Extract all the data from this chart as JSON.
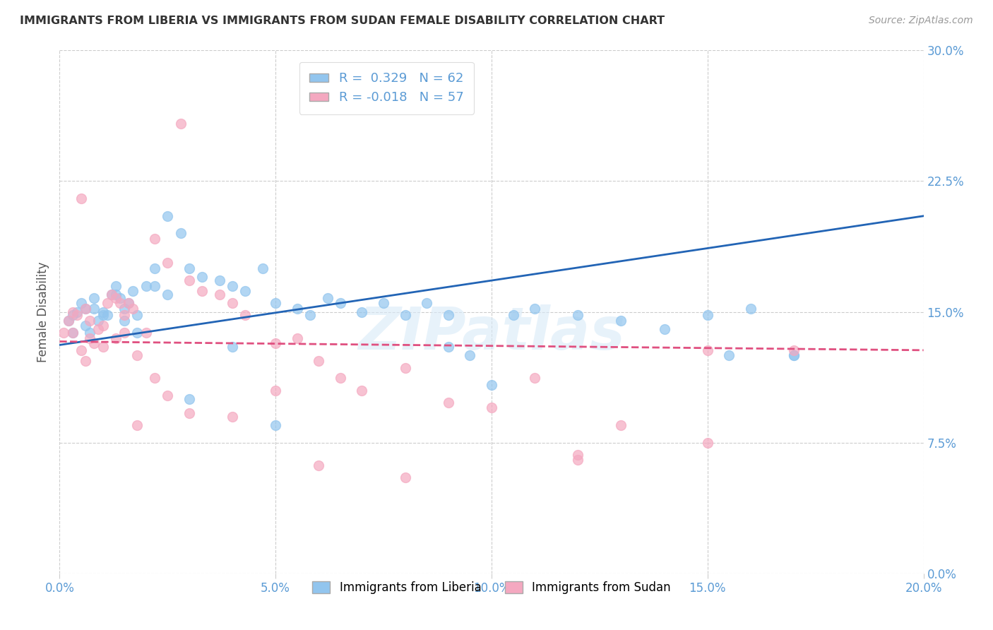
{
  "title": "IMMIGRANTS FROM LIBERIA VS IMMIGRANTS FROM SUDAN FEMALE DISABILITY CORRELATION CHART",
  "source": "Source: ZipAtlas.com",
  "xlabel_ticks": [
    "0.0%",
    "",
    "",
    "",
    "20.0%"
  ],
  "xlabel_tick_vals": [
    0.0,
    0.05,
    0.1,
    0.15,
    0.2
  ],
  "ylabel": "Female Disability",
  "ylabel_ticks": [
    "30.0%",
    "22.5%",
    "15.0%",
    "7.5%",
    "0.0%"
  ],
  "ylabel_tick_vals": [
    0.3,
    0.225,
    0.15,
    0.075,
    0.0
  ],
  "xlim": [
    0.0,
    0.2
  ],
  "ylim": [
    0.0,
    0.3
  ],
  "liberia_R": 0.329,
  "liberia_N": 62,
  "sudan_R": -0.018,
  "sudan_N": 57,
  "legend_label_liberia": "Immigrants from Liberia",
  "legend_label_sudan": "Immigrants from Sudan",
  "color_liberia": "#92C5EE",
  "color_sudan": "#F4A8C0",
  "trendline_liberia_color": "#2264B5",
  "trendline_sudan_color": "#E05080",
  "axis_label_color": "#5B9BD5",
  "title_color": "#333333",
  "watermark_text": "ZIPatlas",
  "trendline_liberia_x0": 0.0,
  "trendline_liberia_y0": 0.131,
  "trendline_liberia_x1": 0.2,
  "trendline_liberia_y1": 0.205,
  "trendline_sudan_x0": 0.0,
  "trendline_sudan_y0": 0.133,
  "trendline_sudan_x1": 0.2,
  "trendline_sudan_y1": 0.128,
  "liberia_x": [
    0.002,
    0.003,
    0.004,
    0.005,
    0.006,
    0.007,
    0.008,
    0.009,
    0.01,
    0.011,
    0.012,
    0.013,
    0.014,
    0.015,
    0.016,
    0.017,
    0.018,
    0.02,
    0.022,
    0.025,
    0.028,
    0.03,
    0.033,
    0.037,
    0.04,
    0.043,
    0.047,
    0.05,
    0.055,
    0.058,
    0.062,
    0.065,
    0.07,
    0.075,
    0.08,
    0.085,
    0.09,
    0.095,
    0.1,
    0.105,
    0.11,
    0.12,
    0.13,
    0.14,
    0.15,
    0.155,
    0.16,
    0.17,
    0.003,
    0.006,
    0.008,
    0.01,
    0.013,
    0.015,
    0.018,
    0.022,
    0.025,
    0.03,
    0.04,
    0.05,
    0.09,
    0.17
  ],
  "liberia_y": [
    0.145,
    0.148,
    0.15,
    0.155,
    0.142,
    0.138,
    0.152,
    0.145,
    0.15,
    0.148,
    0.16,
    0.165,
    0.158,
    0.152,
    0.155,
    0.162,
    0.148,
    0.165,
    0.175,
    0.205,
    0.195,
    0.175,
    0.17,
    0.168,
    0.165,
    0.162,
    0.175,
    0.155,
    0.152,
    0.148,
    0.158,
    0.155,
    0.15,
    0.155,
    0.148,
    0.155,
    0.148,
    0.125,
    0.108,
    0.148,
    0.152,
    0.148,
    0.145,
    0.14,
    0.148,
    0.125,
    0.152,
    0.125,
    0.138,
    0.152,
    0.158,
    0.148,
    0.16,
    0.145,
    0.138,
    0.165,
    0.16,
    0.1,
    0.13,
    0.085,
    0.13,
    0.125
  ],
  "sudan_x": [
    0.001,
    0.002,
    0.003,
    0.004,
    0.005,
    0.006,
    0.007,
    0.008,
    0.009,
    0.01,
    0.011,
    0.012,
    0.013,
    0.014,
    0.015,
    0.016,
    0.017,
    0.018,
    0.02,
    0.022,
    0.025,
    0.028,
    0.03,
    0.033,
    0.037,
    0.04,
    0.043,
    0.05,
    0.055,
    0.06,
    0.065,
    0.07,
    0.08,
    0.09,
    0.1,
    0.11,
    0.12,
    0.13,
    0.15,
    0.17,
    0.003,
    0.005,
    0.007,
    0.01,
    0.013,
    0.015,
    0.018,
    0.022,
    0.025,
    0.03,
    0.04,
    0.05,
    0.06,
    0.08,
    0.12,
    0.15,
    0.006
  ],
  "sudan_y": [
    0.138,
    0.145,
    0.15,
    0.148,
    0.128,
    0.122,
    0.135,
    0.132,
    0.14,
    0.13,
    0.155,
    0.16,
    0.158,
    0.155,
    0.148,
    0.155,
    0.152,
    0.125,
    0.138,
    0.192,
    0.178,
    0.258,
    0.168,
    0.162,
    0.16,
    0.155,
    0.148,
    0.132,
    0.135,
    0.122,
    0.112,
    0.105,
    0.118,
    0.098,
    0.095,
    0.112,
    0.065,
    0.085,
    0.075,
    0.128,
    0.138,
    0.215,
    0.145,
    0.142,
    0.135,
    0.138,
    0.085,
    0.112,
    0.102,
    0.092,
    0.09,
    0.105,
    0.062,
    0.055,
    0.068,
    0.128,
    0.152
  ]
}
